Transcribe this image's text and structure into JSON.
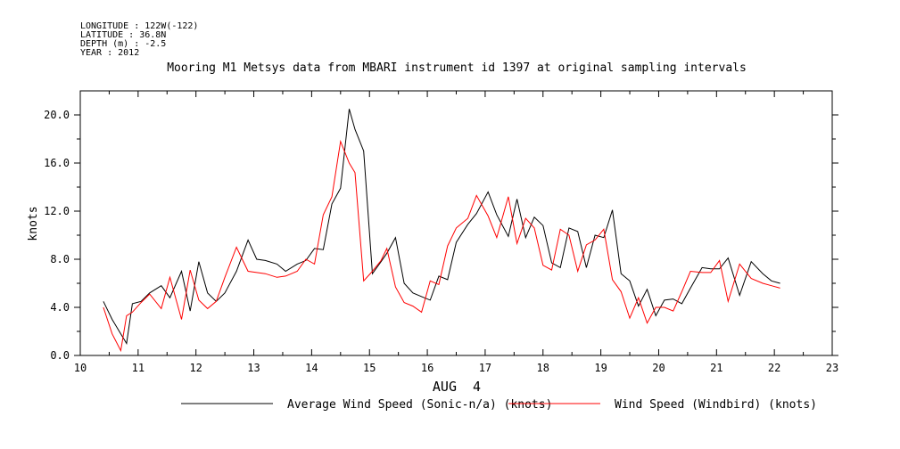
{
  "header": {
    "longitude": "LONGITUDE : 122W(-122)",
    "latitude": "LATITUDE : 36.8N",
    "depth": "DEPTH (m) : -2.5",
    "year": "YEAR : 2012"
  },
  "chart_data": {
    "type": "line",
    "title": "Mooring M1 Metsys data from MBARI instrument id 1397 at original sampling intervals",
    "xlabel": "AUG  4",
    "ylabel": "knots",
    "xlim": [
      10,
      23
    ],
    "ylim": [
      0,
      22
    ],
    "x_ticks": [
      "10",
      "11",
      "12",
      "13",
      "14",
      "15",
      "16",
      "17",
      "18",
      "19",
      "20",
      "21",
      "22",
      "23"
    ],
    "y_ticks": [
      "0.0",
      "4.0",
      "8.0",
      "12.0",
      "16.0",
      "20.0"
    ],
    "grid": false,
    "legend": "bottom",
    "x": [
      10.4,
      10.55,
      10.7,
      10.8,
      10.9,
      11.05,
      11.2,
      11.4,
      11.55,
      11.75,
      11.9,
      12.05,
      12.2,
      12.35,
      12.5,
      12.7,
      12.9,
      13.05,
      13.2,
      13.4,
      13.55,
      13.75,
      13.9,
      14.05,
      14.2,
      14.35,
      14.5,
      14.65,
      14.75,
      14.9,
      15.05,
      15.2,
      15.3,
      15.45,
      15.6,
      15.75,
      15.9,
      16.05,
      16.2,
      16.35,
      16.5,
      16.7,
      16.85,
      17.05,
      17.2,
      17.4,
      17.55,
      17.7,
      17.85,
      18.0,
      18.15,
      18.3,
      18.45,
      18.6,
      18.75,
      18.9,
      19.05,
      19.2,
      19.35,
      19.5,
      19.65,
      19.8,
      19.95,
      20.1,
      20.25,
      20.4,
      20.55,
      20.75,
      20.9,
      21.05,
      21.2,
      21.4,
      21.6,
      21.8,
      21.95,
      22.1
    ],
    "series": [
      {
        "name": "Average Wind Speed (Sonic-n/a) (knots)",
        "color": "#000000",
        "values": [
          4.5,
          3.0,
          1.8,
          1.0,
          4.3,
          4.5,
          5.2,
          5.8,
          4.8,
          7.0,
          3.7,
          7.8,
          5.2,
          4.5,
          5.2,
          7.0,
          9.6,
          8.0,
          7.9,
          7.6,
          7.0,
          7.6,
          7.9,
          8.9,
          8.8,
          12.6,
          13.9,
          20.5,
          18.8,
          17.0,
          6.8,
          7.8,
          8.5,
          9.8,
          6.0,
          5.2,
          4.9,
          4.6,
          6.6,
          6.3,
          9.4,
          10.9,
          11.8,
          13.6,
          11.7,
          9.9,
          13.0,
          9.8,
          11.5,
          10.8,
          7.7,
          7.3,
          10.6,
          10.3,
          7.3,
          10.0,
          9.8,
          12.1,
          6.8,
          6.2,
          4.1,
          5.5,
          3.3,
          4.6,
          4.7,
          4.3,
          5.6,
          7.3,
          7.2,
          7.2,
          8.1,
          5.0,
          7.8,
          6.8,
          6.2,
          6.0
        ]
      },
      {
        "name": "Wind Speed (Windbird) (knots)",
        "color": "#ff0000",
        "values": [
          4.0,
          1.8,
          0.4,
          3.3,
          3.6,
          4.4,
          5.1,
          3.9,
          6.5,
          3.0,
          7.1,
          4.6,
          3.9,
          4.5,
          6.5,
          9.0,
          7.0,
          6.9,
          6.8,
          6.5,
          6.6,
          7.0,
          8.0,
          7.6,
          11.7,
          13.2,
          17.8,
          16.0,
          15.2,
          6.2,
          7.0,
          7.9,
          8.9,
          5.7,
          4.4,
          4.1,
          3.6,
          6.2,
          5.9,
          9.1,
          10.6,
          11.4,
          13.3,
          11.6,
          9.8,
          13.2,
          9.3,
          11.4,
          10.6,
          7.5,
          7.1,
          10.5,
          10.0,
          7.0,
          9.2,
          9.6,
          10.5,
          6.3,
          5.3,
          3.1,
          4.8,
          2.7,
          4.0,
          4.0,
          3.7,
          5.3,
          7.0,
          6.9,
          6.9,
          7.9,
          4.5,
          7.6,
          6.4,
          6.0,
          5.8,
          5.6
        ]
      }
    ]
  }
}
